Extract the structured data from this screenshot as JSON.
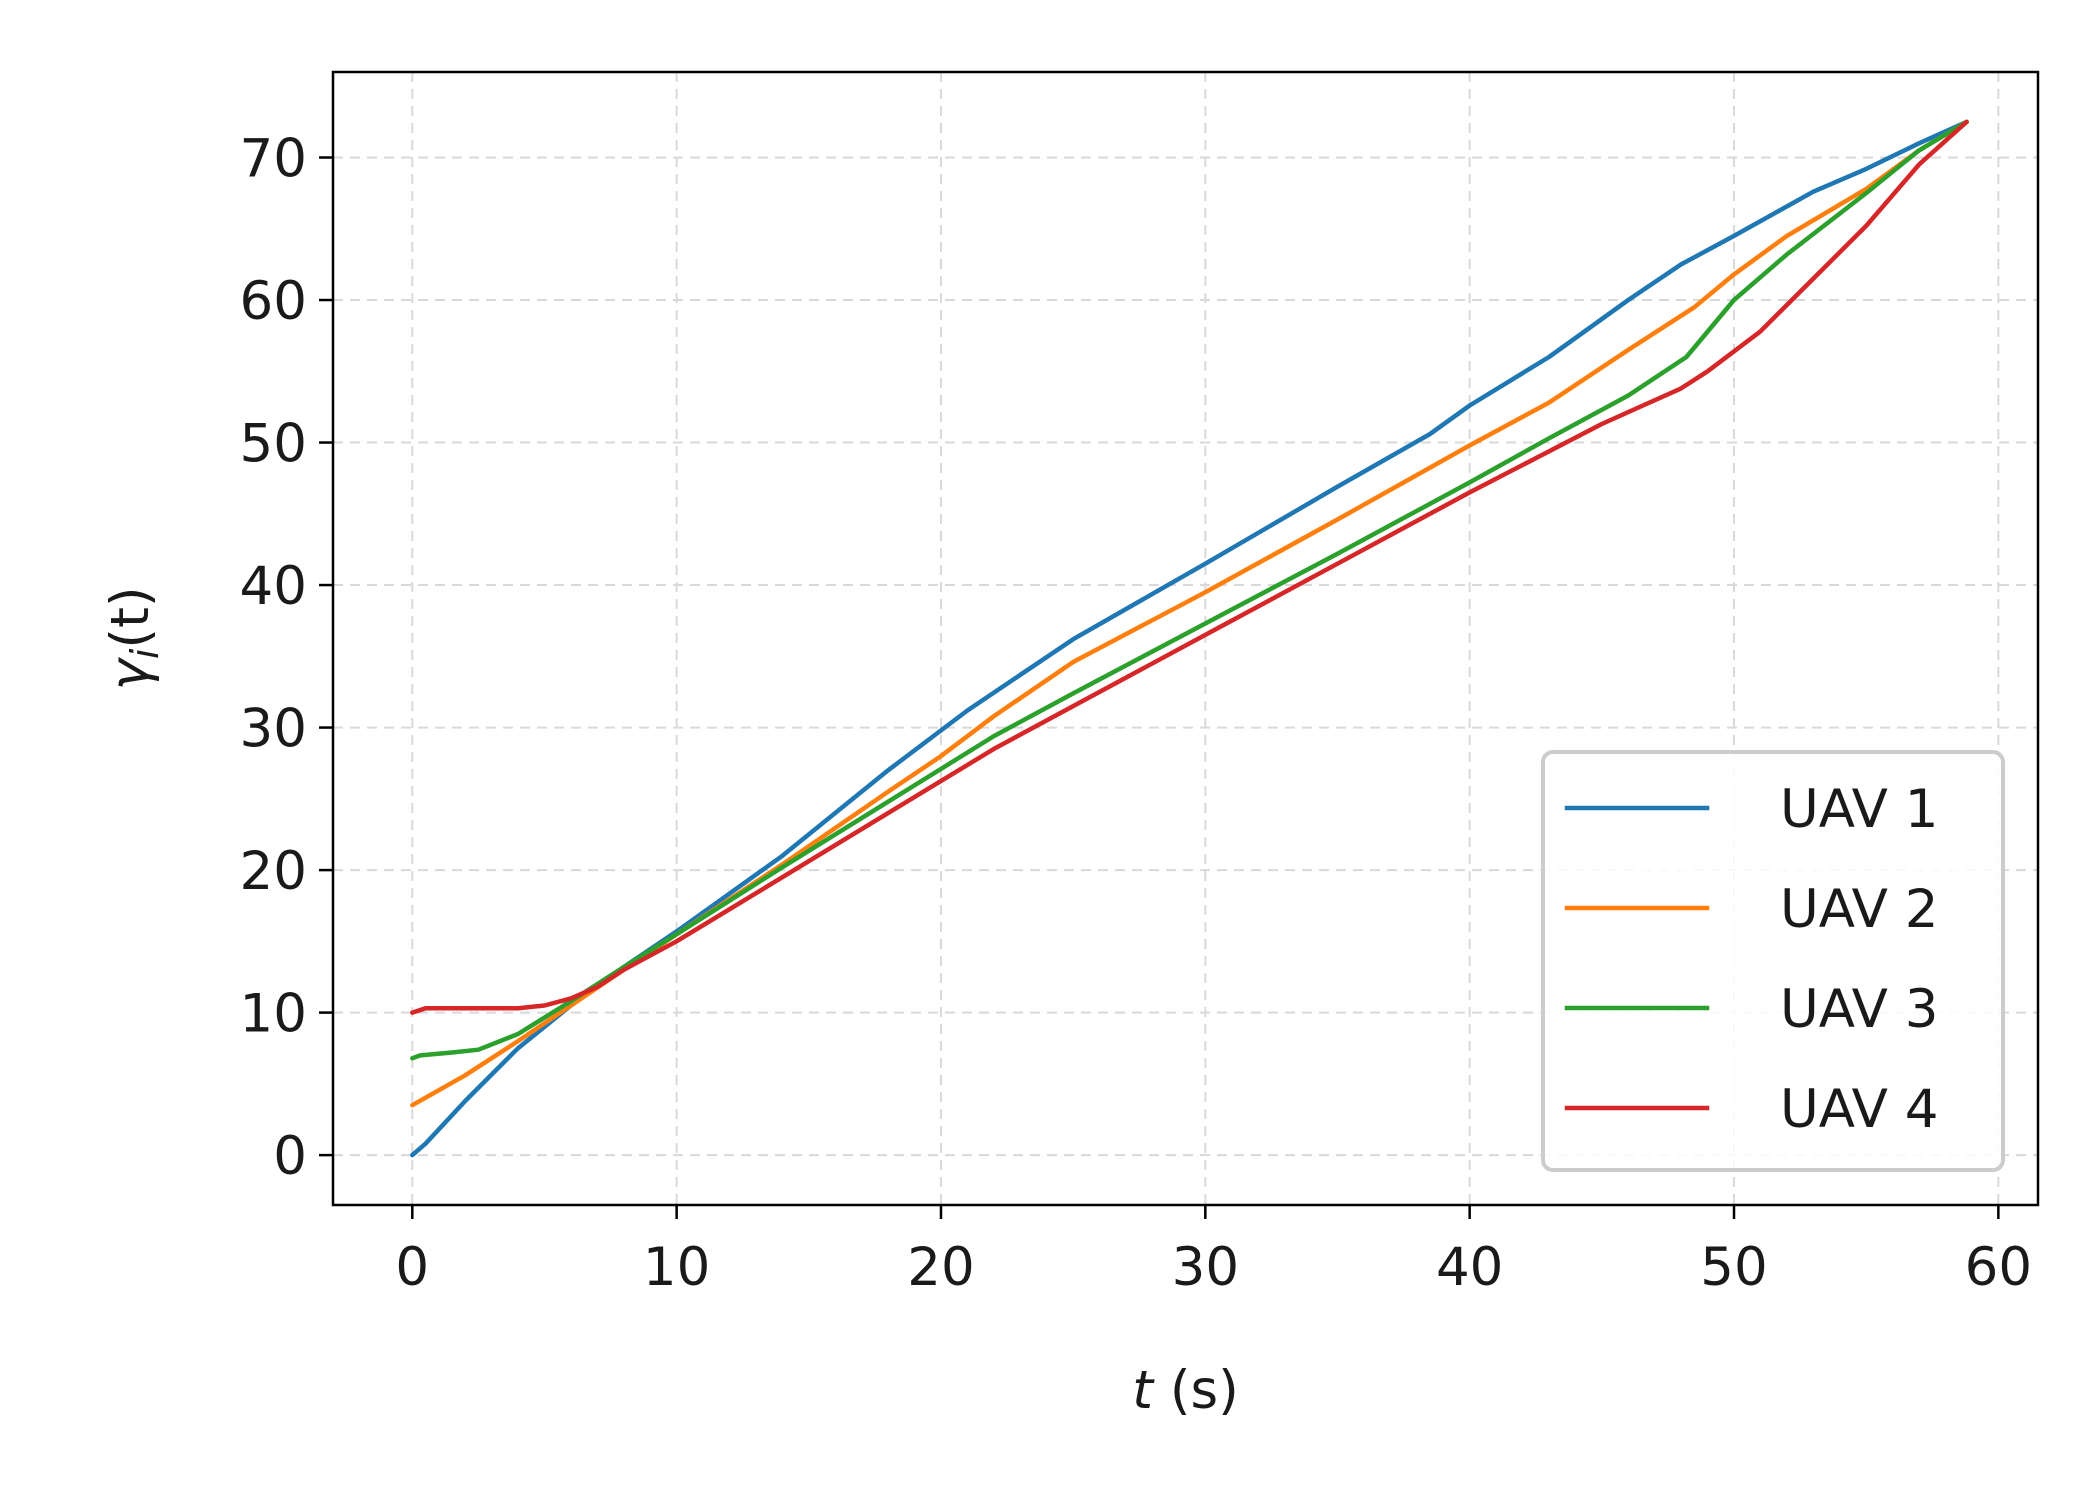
{
  "chart_data": {
    "type": "line",
    "xlabel_italic": "t",
    "xlabel_rest": " (s)",
    "ylabel_symbol": "γ",
    "ylabel_sub": "i",
    "ylabel_rest": "(t)",
    "xlim": [
      -3,
      61.5
    ],
    "ylim": [
      -3.5,
      76
    ],
    "xticks": [
      0,
      10,
      20,
      30,
      40,
      50,
      60
    ],
    "yticks": [
      0,
      10,
      20,
      30,
      40,
      50,
      60,
      70
    ],
    "grid": true,
    "legend_position": "lower-right",
    "series": [
      {
        "name": "UAV 1",
        "color": "#1f77b4",
        "x": [
          0,
          0.5,
          2,
          4,
          6,
          8,
          10,
          14,
          18,
          21,
          25,
          30,
          35,
          38.5,
          40,
          43,
          46,
          48,
          50,
          53,
          55,
          57,
          58.8
        ],
        "y": [
          0,
          0.8,
          3.8,
          7.5,
          10.5,
          13.2,
          15.7,
          21,
          27,
          31.2,
          36.2,
          41.5,
          46.9,
          50.6,
          52.6,
          56,
          60,
          62.5,
          64.5,
          67.6,
          69.2,
          71,
          72.5
        ]
      },
      {
        "name": "UAV 2",
        "color": "#ff7f0e",
        "x": [
          0,
          2,
          4,
          6,
          8,
          10,
          14,
          18,
          20,
          22,
          25,
          30,
          35,
          40,
          43,
          46,
          48.5,
          50,
          52,
          55,
          57,
          58.8
        ],
        "y": [
          3.5,
          5.6,
          8,
          10.5,
          13,
          15.5,
          20.4,
          25.5,
          28,
          30.8,
          34.6,
          39.5,
          44.6,
          49.8,
          52.8,
          56.5,
          59.5,
          61.8,
          64.5,
          67.8,
          70.5,
          72.5
        ]
      },
      {
        "name": "UAV 3",
        "color": "#2ca02c",
        "x": [
          0,
          0.3,
          1.5,
          2.5,
          4,
          6,
          8,
          10,
          14,
          18,
          22,
          25,
          30,
          35,
          40,
          43,
          46,
          48.2,
          50,
          52,
          55,
          57,
          58.8
        ],
        "y": [
          6.8,
          7,
          7.2,
          7.4,
          8.5,
          10.8,
          13.2,
          15.5,
          20.2,
          24.8,
          29.4,
          32.4,
          37.3,
          42.2,
          47.2,
          50.3,
          53.3,
          56,
          60,
          63.2,
          67.5,
          70.5,
          72.5
        ]
      },
      {
        "name": "UAV 4",
        "color": "#d62728",
        "x": [
          0,
          0.5,
          2,
          4,
          5,
          6,
          7,
          8,
          10,
          14,
          18,
          22,
          26,
          30,
          35,
          40,
          45,
          48,
          49,
          51,
          53,
          55,
          57,
          58.8
        ],
        "y": [
          10,
          10.3,
          10.3,
          10.3,
          10.5,
          11,
          11.8,
          13,
          15,
          19.5,
          24,
          28.5,
          32.5,
          36.5,
          41.5,
          46.5,
          51.3,
          53.8,
          55,
          57.8,
          61.5,
          65.2,
          69.5,
          72.5
        ]
      }
    ]
  }
}
